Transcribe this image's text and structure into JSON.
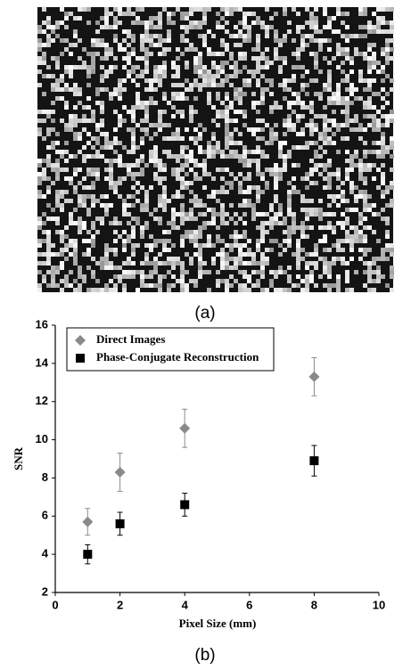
{
  "figure_a": {
    "caption": "(a)"
  },
  "chart_data": {
    "type": "scatter",
    "caption": "(b)",
    "xlabel": "Pixel Size (mm)",
    "ylabel": "SNR",
    "xlim": [
      0,
      10
    ],
    "xticks": [
      0,
      2,
      4,
      6,
      8,
      10
    ],
    "ylim": [
      2,
      16
    ],
    "yticks": [
      2,
      4,
      6,
      8,
      10,
      12,
      14,
      16
    ],
    "legend": "upper left",
    "series": [
      {
        "name": "Direct Images",
        "color": "#8a8a8a",
        "marker": "diamond",
        "x": [
          1,
          2,
          4,
          8
        ],
        "values": [
          5.7,
          8.3,
          10.6,
          13.3
        ],
        "errors": [
          0.7,
          1.0,
          1.0,
          1.0
        ]
      },
      {
        "name": "Phase-Conjugate Reconstruction",
        "color": "#000000",
        "marker": "square",
        "x": [
          1,
          2,
          4,
          8
        ],
        "values": [
          4.0,
          5.6,
          6.6,
          8.9
        ],
        "errors": [
          0.5,
          0.6,
          0.6,
          0.8
        ]
      }
    ]
  }
}
